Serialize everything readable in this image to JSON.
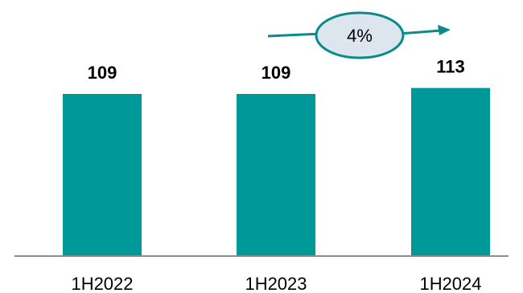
{
  "chart_data": {
    "type": "bar",
    "categories": [
      "1H2022",
      "1H2023",
      "1H2024"
    ],
    "values": [
      109,
      109,
      113
    ],
    "value_labels": [
      "109",
      "109",
      "113"
    ],
    "annotation": "4%",
    "bar_color": "#009999",
    "annotation_color": "#0a8a8a",
    "annotation_fill": "#dde6ee"
  }
}
